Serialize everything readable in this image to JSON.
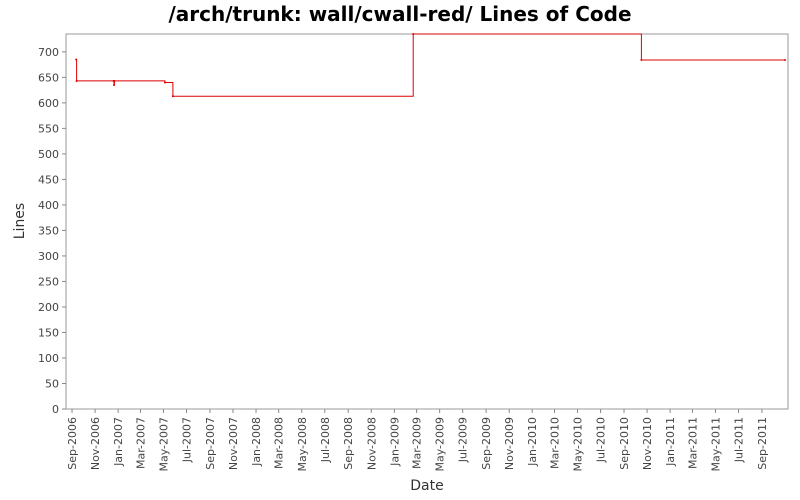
{
  "chart_data": {
    "type": "line",
    "title": "/arch/trunk: wall/cwall-red/ Lines of Code",
    "xlabel": "Date",
    "ylabel": "Lines",
    "ylim": [
      0,
      735
    ],
    "xlim": [
      "2006-08-16",
      "2011-11-09"
    ],
    "y_ticks": [
      0,
      50,
      100,
      150,
      200,
      250,
      300,
      350,
      400,
      450,
      500,
      550,
      600,
      650,
      700
    ],
    "x_ticks": [
      {
        "date": "2006-09-01",
        "label": "Sep-2006"
      },
      {
        "date": "2006-11-01",
        "label": "Nov-2006"
      },
      {
        "date": "2007-01-01",
        "label": "Jan-2007"
      },
      {
        "date": "2007-03-01",
        "label": "Mar-2007"
      },
      {
        "date": "2007-05-01",
        "label": "May-2007"
      },
      {
        "date": "2007-07-01",
        "label": "Jul-2007"
      },
      {
        "date": "2007-09-01",
        "label": "Sep-2007"
      },
      {
        "date": "2007-11-01",
        "label": "Nov-2007"
      },
      {
        "date": "2008-01-01",
        "label": "Jan-2008"
      },
      {
        "date": "2008-03-01",
        "label": "Mar-2008"
      },
      {
        "date": "2008-05-01",
        "label": "May-2008"
      },
      {
        "date": "2008-07-01",
        "label": "Jul-2008"
      },
      {
        "date": "2008-09-01",
        "label": "Sep-2008"
      },
      {
        "date": "2008-11-01",
        "label": "Nov-2008"
      },
      {
        "date": "2009-01-01",
        "label": "Jan-2009"
      },
      {
        "date": "2009-03-01",
        "label": "Mar-2009"
      },
      {
        "date": "2009-05-01",
        "label": "May-2009"
      },
      {
        "date": "2009-07-01",
        "label": "Jul-2009"
      },
      {
        "date": "2009-09-01",
        "label": "Sep-2009"
      },
      {
        "date": "2009-11-01",
        "label": "Nov-2009"
      },
      {
        "date": "2010-01-01",
        "label": "Jan-2010"
      },
      {
        "date": "2010-03-01",
        "label": "Mar-2010"
      },
      {
        "date": "2010-05-01",
        "label": "May-2010"
      },
      {
        "date": "2010-07-01",
        "label": "Jul-2010"
      },
      {
        "date": "2010-09-01",
        "label": "Sep-2010"
      },
      {
        "date": "2010-11-01",
        "label": "Nov-2010"
      },
      {
        "date": "2011-01-01",
        "label": "Jan-2011"
      },
      {
        "date": "2011-03-01",
        "label": "Mar-2011"
      },
      {
        "date": "2011-05-01",
        "label": "May-2011"
      },
      {
        "date": "2011-07-01",
        "label": "Jul-2011"
      },
      {
        "date": "2011-09-01",
        "label": "Sep-2011"
      }
    ],
    "grid": false,
    "series": [
      {
        "color": "#dd0000",
        "step": true,
        "points": [
          {
            "x": "2006-09-12",
            "y": 685
          },
          {
            "x": "2006-09-13",
            "y": 643
          },
          {
            "x": "2006-12-20",
            "y": 643
          },
          {
            "x": "2006-12-21",
            "y": 635
          },
          {
            "x": "2006-12-22",
            "y": 643
          },
          {
            "x": "2007-05-05",
            "y": 640
          },
          {
            "x": "2007-05-26",
            "y": 613
          },
          {
            "x": "2009-02-20",
            "y": 735
          },
          {
            "x": "2010-10-17",
            "y": 684
          },
          {
            "x": "2011-11-01",
            "y": 684
          }
        ]
      }
    ]
  }
}
